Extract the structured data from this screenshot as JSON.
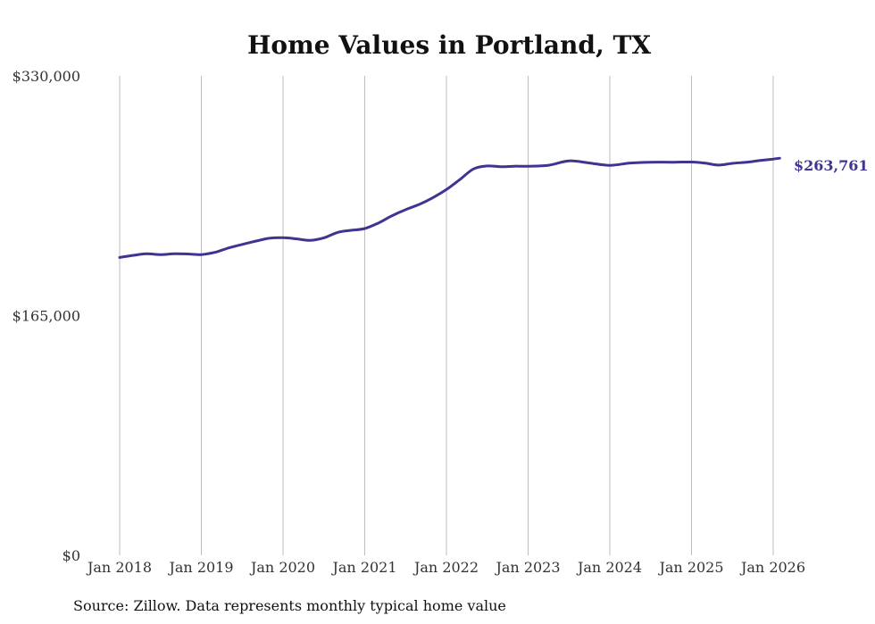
{
  "chart_data": {
    "type": "line",
    "title": "Home Values in Portland, TX",
    "source": "Source: Zillow. Data represents monthly typical home value",
    "xlabel": "",
    "ylabel": "",
    "ylim": [
      0,
      330000
    ],
    "y_ticks": [
      {
        "value": 0,
        "label": "$0"
      },
      {
        "value": 165000,
        "label": "$165,000"
      },
      {
        "value": 330000,
        "label": "$330,000"
      }
    ],
    "x_range": [
      2018.0,
      2026.0
    ],
    "x_ticks": [
      {
        "value": 2018,
        "label": "Jan 2018"
      },
      {
        "value": 2019,
        "label": "Jan 2019"
      },
      {
        "value": 2020,
        "label": "Jan 2020"
      },
      {
        "value": 2021,
        "label": "Jan 2021"
      },
      {
        "value": 2022,
        "label": "Jan 2022"
      },
      {
        "value": 2023,
        "label": "Jan 2023"
      },
      {
        "value": 2024,
        "label": "Jan 2024"
      },
      {
        "value": 2025,
        "label": "Jan 2025"
      },
      {
        "value": 2026,
        "label": "Jan 2026"
      }
    ],
    "grid": "vertical",
    "end_label": "$263,761",
    "series": [
      {
        "name": "Typical home value",
        "color": "#3d3591",
        "x": [
          2018.0,
          2018.17,
          2018.33,
          2018.5,
          2018.67,
          2018.83,
          2019.0,
          2019.17,
          2019.33,
          2019.5,
          2019.67,
          2019.83,
          2020.0,
          2020.17,
          2020.33,
          2020.5,
          2020.67,
          2020.83,
          2021.0,
          2021.17,
          2021.33,
          2021.5,
          2021.67,
          2021.83,
          2022.0,
          2022.17,
          2022.33,
          2022.5,
          2022.67,
          2022.83,
          2023.0,
          2023.25,
          2023.5,
          2023.75,
          2024.0,
          2024.25,
          2024.5,
          2024.75,
          2025.0,
          2025.17,
          2025.33,
          2025.5,
          2025.67,
          2025.83,
          2026.0,
          2026.08
        ],
        "values": [
          205000,
          206500,
          207500,
          207000,
          207500,
          207400,
          207000,
          208600,
          211500,
          214000,
          216300,
          218200,
          218600,
          217800,
          216800,
          218500,
          222300,
          223700,
          224900,
          228800,
          233600,
          237900,
          241600,
          246000,
          251800,
          258900,
          265900,
          268000,
          267500,
          267800,
          267800,
          268500,
          271500,
          270000,
          268400,
          270000,
          270600,
          270600,
          270700,
          269900,
          268600,
          269800,
          270500,
          271700,
          272700,
          263761
        ]
      }
    ]
  }
}
